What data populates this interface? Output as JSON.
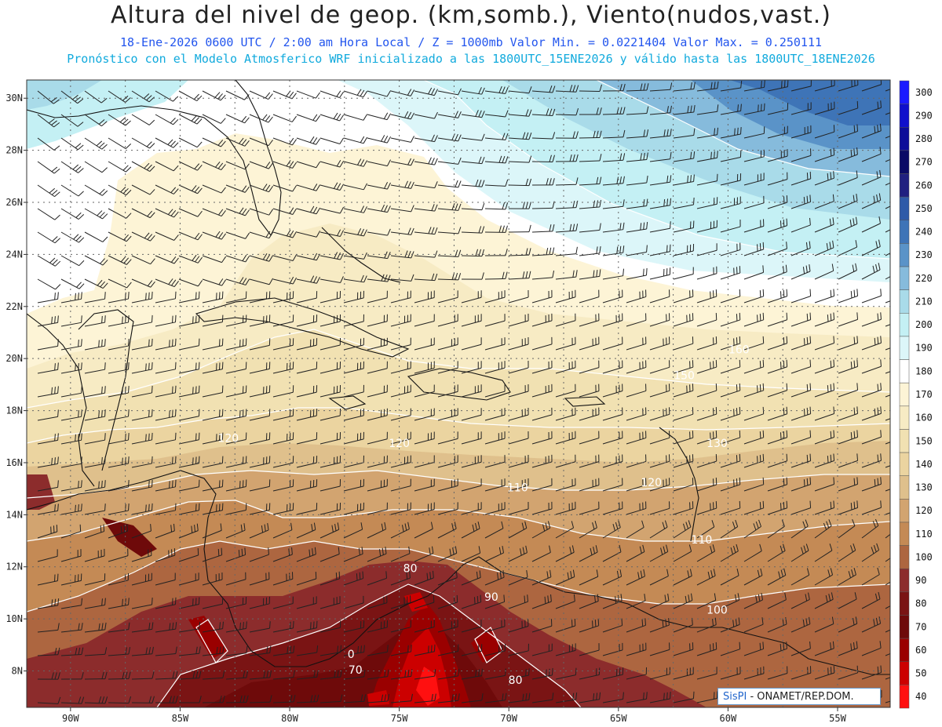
{
  "title": "Altura del nivel de geop. (km,somb.), Viento(nudos,vast.)",
  "subtitle_line1": "18-Ene-2026 0600 UTC / 2:00 am Hora Local / Z = 1000mb Valor Min. = 0.0221404 Valor Max. = 0.250111",
  "subtitle_line2": "Pronóstico con el Modelo Atmosferico WRF inicializado a las 1800UTC_15ENE2026 y válido hasta las 1800UTC_18ENE2026",
  "map": {
    "lon_ticks": [
      "90W",
      "85W",
      "80W",
      "75W",
      "70W",
      "65W",
      "60W",
      "55W"
    ],
    "lat_ticks": [
      "30N",
      "28N",
      "26N",
      "24N",
      "22N",
      "20N",
      "18N",
      "16N",
      "14N",
      "12N",
      "10N",
      "8N"
    ],
    "contour_labels": [
      {
        "text": "120",
        "lon": -82.8,
        "lat": 16.8
      },
      {
        "text": "120",
        "lon": -75.0,
        "lat": 16.6
      },
      {
        "text": "110",
        "lon": -69.6,
        "lat": 14.9
      },
      {
        "text": "120",
        "lon": -63.5,
        "lat": 15.1
      },
      {
        "text": "130",
        "lon": -60.5,
        "lat": 16.6
      },
      {
        "text": "150",
        "lon": -62.0,
        "lat": 19.2
      },
      {
        "text": "160",
        "lon": -59.5,
        "lat": 20.2
      },
      {
        "text": "110",
        "lon": -61.2,
        "lat": 12.9
      },
      {
        "text": "100",
        "lon": -60.5,
        "lat": 10.2
      },
      {
        "text": "80",
        "lon": -74.5,
        "lat": 11.8
      },
      {
        "text": "90",
        "lon": -70.8,
        "lat": 10.7
      },
      {
        "text": "70",
        "lon": -77.0,
        "lat": 7.9
      },
      {
        "text": "80",
        "lon": -69.7,
        "lat": 7.5
      },
      {
        "text": "0",
        "lon": -77.2,
        "lat": 8.5
      }
    ]
  },
  "colorbar": {
    "levels": [
      "300",
      "290",
      "280",
      "270",
      "260",
      "250",
      "240",
      "230",
      "220",
      "210",
      "200",
      "190",
      "180",
      "170",
      "160",
      "150",
      "140",
      "130",
      "120",
      "110",
      "100",
      "90",
      "80",
      "70",
      "60",
      "50",
      "40"
    ],
    "colors": [
      "#1a1aff",
      "#1010cc",
      "#0d0d99",
      "#0a0a66",
      "#202080",
      "#2e5aa8",
      "#3e74b7",
      "#5a93c8",
      "#86bbdc",
      "#a9dbe9",
      "#c4f0f4",
      "#dcf6f9",
      "#ffffff",
      "#fdf4d6",
      "#f7ebc4",
      "#f1e1b2",
      "#ebd4a0",
      "#dfc08c",
      "#d2a470",
      "#c48a55",
      "#ad6640",
      "#8c2c2c",
      "#7a1414",
      "#6e0a0a",
      "#9a0000",
      "#cc0000",
      "#ff1010"
    ]
  },
  "credit": {
    "sis": "SisPI",
    "org": " - ONAMET/REP.DOM."
  }
}
